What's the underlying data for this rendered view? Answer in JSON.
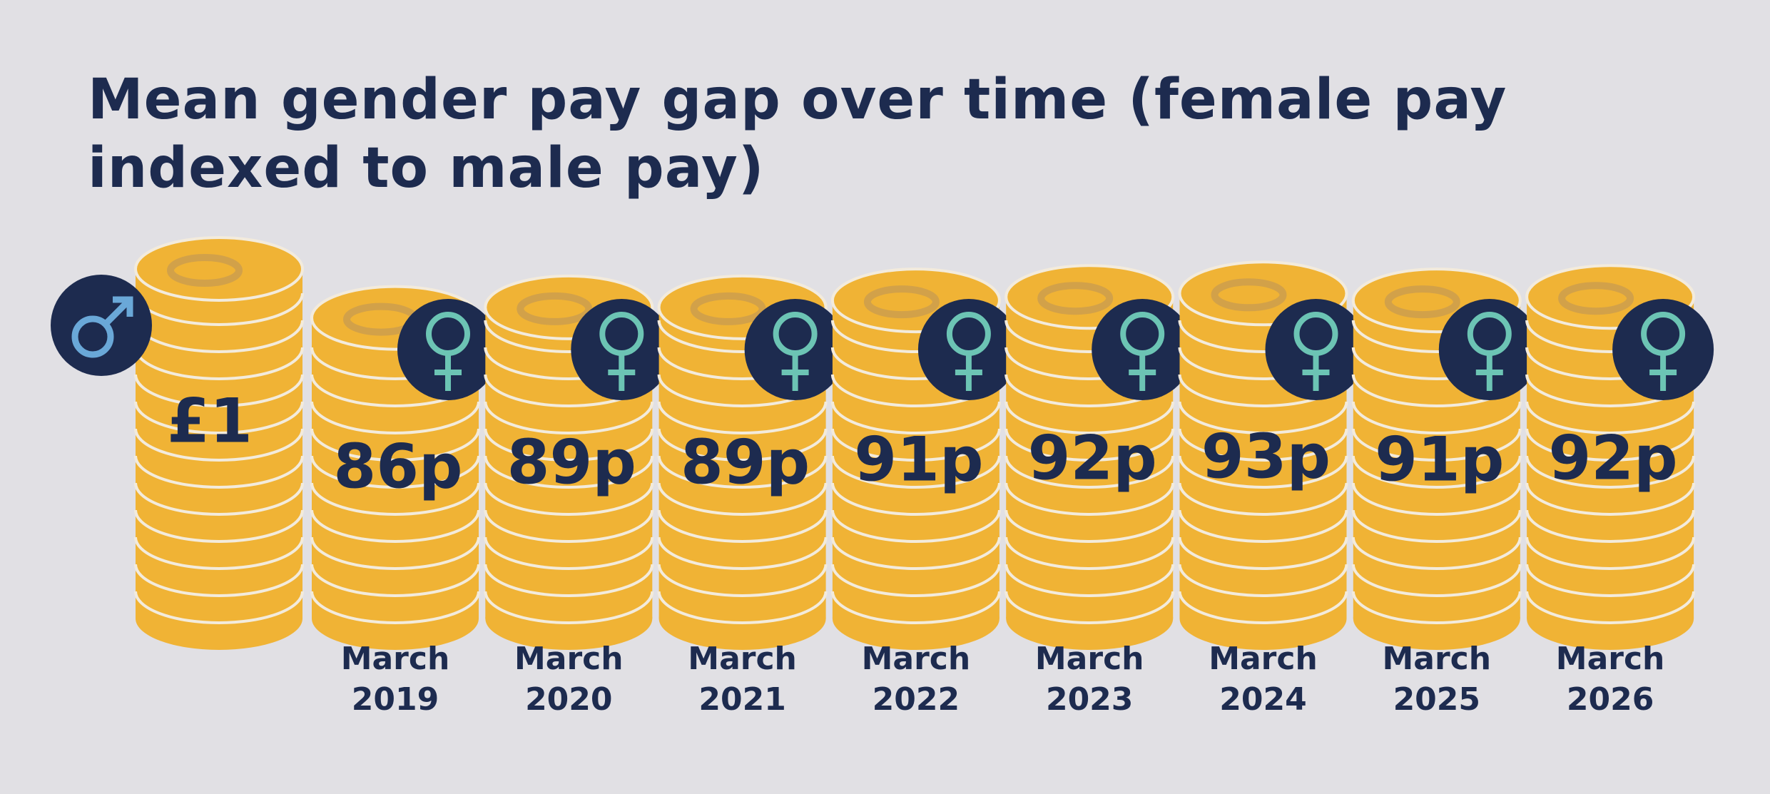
{
  "chart_data": {
    "type": "coin-stacks",
    "title": "Mean gender pay gap over time (female pay indexed to male pay)",
    "reference": {
      "value": 100,
      "label": "£1"
    },
    "categories": [
      "March 2019",
      "March 2020",
      "March 2021",
      "March 2022",
      "March 2023",
      "March 2024",
      "March 2025",
      "March 2026"
    ],
    "values": [
      86,
      89,
      89,
      91,
      92,
      93,
      91,
      92
    ],
    "value_labels": [
      "86p",
      "89p",
      "89p",
      "91p",
      "92p",
      "93p",
      "91p",
      "92p"
    ],
    "color": "#f0b335"
  }
}
